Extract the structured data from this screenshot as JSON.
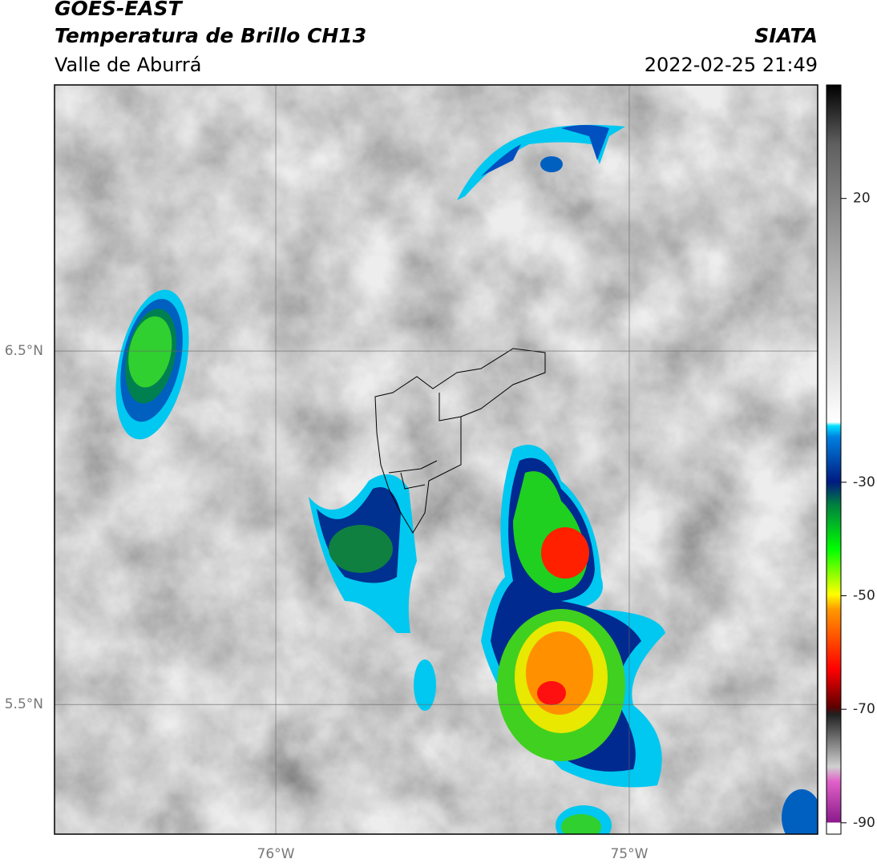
{
  "header": {
    "title": "GOES-EAST",
    "subtitle": "Temperatura de Brillo CH13",
    "region": "Valle de Aburrá",
    "source": "SIATA",
    "datetime": "2022-02-25 21:49"
  },
  "map": {
    "xlim": [
      -76.626,
      -74.467
    ],
    "ylim": [
      5.133,
      7.253
    ],
    "xticks": [
      {
        "value": -76,
        "label": "76°W"
      },
      {
        "value": -75,
        "label": "75°W"
      }
    ],
    "yticks": [
      {
        "value": 6.5,
        "label": "6.5°N"
      },
      {
        "value": 5.5,
        "label": "5.5°N"
      }
    ],
    "grid": true
  },
  "colorbar": {
    "lim": [
      -92,
      40
    ],
    "ticks": [
      20,
      -30,
      -50,
      -70,
      -90
    ]
  }
}
